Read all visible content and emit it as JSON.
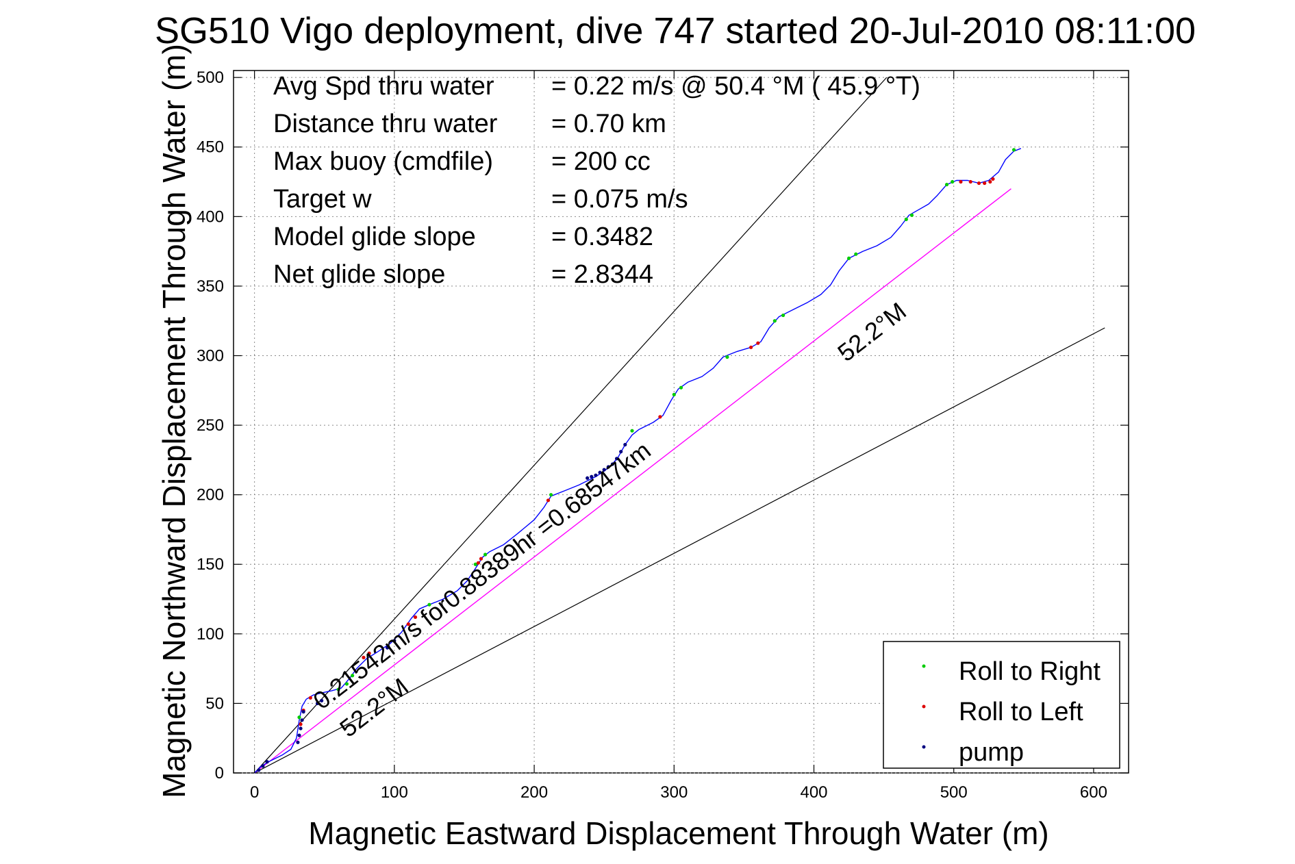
{
  "figure": {
    "title": "SG510 Vigo deployment, dive 747 started 20-Jul-2010 08:11:00",
    "background": "#ffffff"
  },
  "chart_data": {
    "type": "line",
    "title": "SG510 Vigo deployment, dive 747 started 20-Jul-2010 08:11:00",
    "xlabel": "Magnetic Eastward Displacement Through Water (m)",
    "ylabel": "Magnetic Northward Displacement Through Water (m)",
    "xlim": [
      -15,
      625
    ],
    "ylim": [
      0,
      505
    ],
    "xticks": [
      0,
      100,
      200,
      300,
      400,
      500,
      600
    ],
    "yticks": [
      0,
      50,
      100,
      150,
      200,
      250,
      300,
      350,
      400,
      450,
      500
    ],
    "grid": true,
    "grid_style": "dotted",
    "info_lines": [
      {
        "label": "Avg Spd thru water",
        "value": "=  0.22 m/s @  50.4 °M ( 45.9 °T)"
      },
      {
        "label": "Distance thru water",
        "value": "=  0.70 km"
      },
      {
        "label": "Max buoy (cmdfile)",
        "value": "= 200 cc"
      },
      {
        "label": "Target w",
        "value": "= 0.075 m/s"
      },
      {
        "label": "Model glide slope",
        "value": "= 0.3482"
      },
      {
        "label": "Net glide slope",
        "value": "= 2.8344"
      }
    ],
    "track": {
      "color": "#0000ff",
      "points": [
        [
          0,
          0
        ],
        [
          5,
          5
        ],
        [
          12,
          9
        ],
        [
          20,
          13
        ],
        [
          26,
          17
        ],
        [
          30,
          25
        ],
        [
          32,
          38
        ],
        [
          34,
          48
        ],
        [
          37,
          53
        ],
        [
          42,
          56
        ],
        [
          50,
          58
        ],
        [
          55,
          59
        ],
        [
          62,
          61
        ],
        [
          68,
          68
        ],
        [
          73,
          75
        ],
        [
          80,
          82
        ],
        [
          88,
          87
        ],
        [
          97,
          93
        ],
        [
          105,
          101
        ],
        [
          112,
          111
        ],
        [
          118,
          118
        ],
        [
          125,
          121
        ],
        [
          135,
          125
        ],
        [
          145,
          131
        ],
        [
          152,
          138
        ],
        [
          158,
          147
        ],
        [
          163,
          155
        ],
        [
          168,
          159
        ],
        [
          178,
          164
        ],
        [
          188,
          172
        ],
        [
          200,
          182
        ],
        [
          207,
          191
        ],
        [
          212,
          199
        ],
        [
          222,
          203
        ],
        [
          232,
          207
        ],
        [
          238,
          210
        ],
        [
          244,
          213
        ],
        [
          250,
          217
        ],
        [
          255,
          221
        ],
        [
          260,
          227
        ],
        [
          265,
          236
        ],
        [
          270,
          243
        ],
        [
          275,
          247
        ],
        [
          285,
          252
        ],
        [
          292,
          257
        ],
        [
          298,
          268
        ],
        [
          303,
          276
        ],
        [
          310,
          281
        ],
        [
          320,
          285
        ],
        [
          328,
          291
        ],
        [
          335,
          299
        ],
        [
          345,
          303
        ],
        [
          355,
          306
        ],
        [
          362,
          310
        ],
        [
          368,
          320
        ],
        [
          375,
          328
        ],
        [
          385,
          333
        ],
        [
          395,
          338
        ],
        [
          405,
          344
        ],
        [
          412,
          351
        ],
        [
          418,
          361
        ],
        [
          425,
          370
        ],
        [
          435,
          375
        ],
        [
          445,
          379
        ],
        [
          455,
          385
        ],
        [
          462,
          393
        ],
        [
          468,
          401
        ],
        [
          475,
          405
        ],
        [
          482,
          409
        ],
        [
          488,
          415
        ],
        [
          495,
          423
        ],
        [
          502,
          426
        ],
        [
          510,
          426
        ],
        [
          518,
          424
        ],
        [
          525,
          426
        ],
        [
          532,
          432
        ],
        [
          537,
          441
        ],
        [
          543,
          447
        ],
        [
          548,
          449
        ]
      ]
    },
    "current_line": {
      "color": "#ff00ff",
      "from": [
        0,
        0
      ],
      "to": [
        541,
        420
      ]
    },
    "reference_lines": {
      "color": "#000000",
      "lines": [
        {
          "from": [
            0,
            0
          ],
          "to": [
            452,
            500
          ]
        },
        {
          "from": [
            0,
            0
          ],
          "to": [
            608,
            320
          ]
        }
      ]
    },
    "annotations": [
      {
        "text": "0.21542m/s for0.88389hr =0.68547km",
        "x": 48,
        "y": 45,
        "angle_deg": 37.8
      },
      {
        "text": "52.2°M",
        "x": 67,
        "y": 25,
        "angle_deg": 37.8
      },
      {
        "text": "52.2°M",
        "x": 423,
        "y": 295,
        "angle_deg": 37.8
      }
    ],
    "series": [
      {
        "name": "Roll to Right",
        "color": "#00cc00",
        "x": [
          32,
          60,
          66,
          70,
          125,
          158,
          165,
          212,
          270,
          300,
          305,
          338,
          372,
          378,
          425,
          430,
          466,
          470,
          495,
          499,
          543
        ],
        "y": [
          40,
          60,
          64,
          70,
          121,
          150,
          157,
          200,
          246,
          272,
          277,
          299,
          325,
          329,
          370,
          373,
          398,
          401,
          423,
          425,
          448
        ]
      },
      {
        "name": "Roll to Left",
        "color": "#dd0000",
        "x": [
          33,
          35,
          40,
          78,
          82,
          110,
          115,
          160,
          162,
          210,
          290,
          355,
          360,
          505,
          512,
          518,
          522,
          526,
          528
        ],
        "y": [
          35,
          45,
          54,
          83,
          86,
          107,
          112,
          151,
          154,
          196,
          256,
          306,
          309,
          425,
          425,
          424,
          424,
          425,
          427
        ]
      },
      {
        "name": "pump",
        "color": "#000080",
        "x": [
          3,
          6,
          9,
          31,
          32,
          33,
          34,
          35,
          45,
          48,
          95,
          100,
          238,
          241,
          244,
          247,
          250,
          253,
          256,
          259,
          262,
          265
        ],
        "y": [
          2,
          5,
          8,
          22,
          27,
          32,
          38,
          44,
          50,
          52,
          90,
          95,
          212,
          213,
          214,
          216,
          218,
          220,
          222,
          226,
          231,
          236
        ]
      }
    ],
    "legend": {
      "placement": "bottom-right",
      "entries": [
        "Roll to Right",
        "Roll to Left",
        "pump"
      ]
    }
  }
}
